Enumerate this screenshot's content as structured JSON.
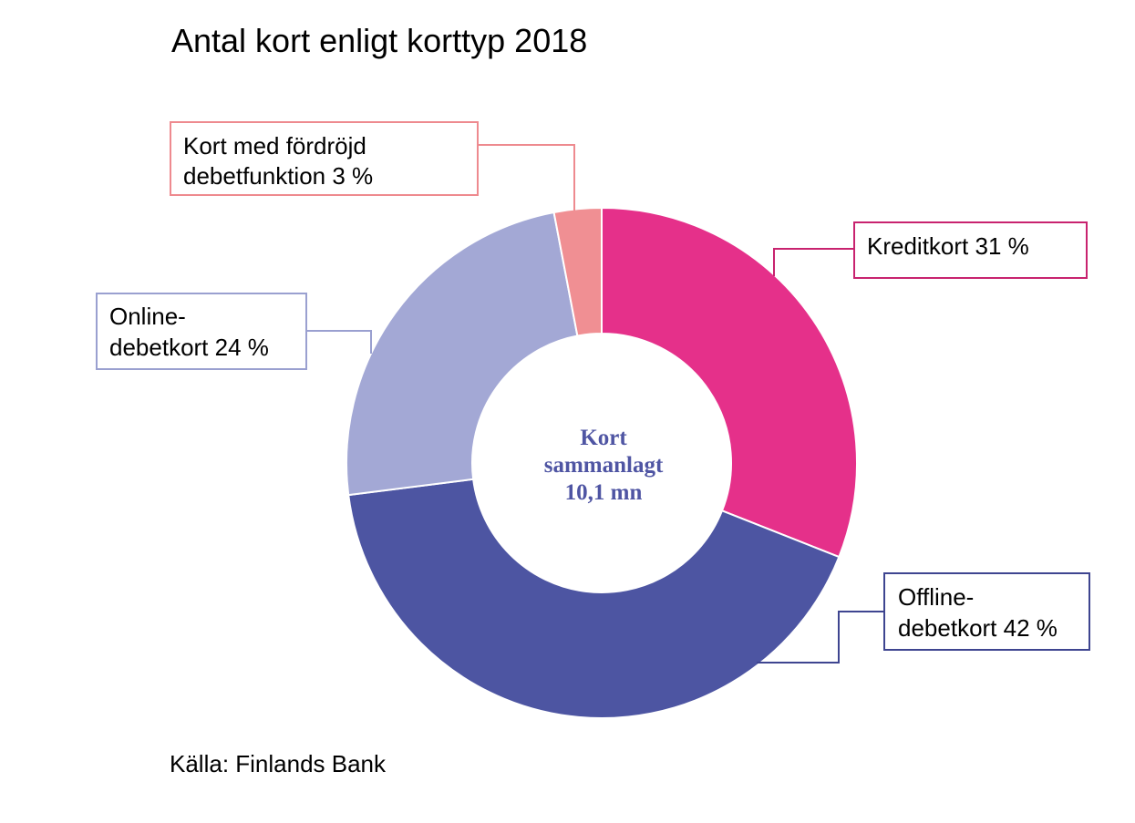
{
  "chart_data": {
    "type": "pie",
    "title": "Antal kort enligt korttyp 2018",
    "center_label": [
      "Kort",
      "sammanlagt",
      "10,1 mn"
    ],
    "source": "Källa: Finlands Bank",
    "slices": [
      {
        "name": "Kreditkort",
        "value": 31,
        "label": [
          "Kreditkort 31 %"
        ],
        "color": "#e5308a",
        "border": "#c8236f"
      },
      {
        "name": "Offline-debetkort",
        "value": 42,
        "label": [
          "Offline-",
          "debetkort 42 %"
        ],
        "color": "#4d55a2",
        "border": "#3e4590"
      },
      {
        "name": "Online-debetkort",
        "value": 24,
        "label": [
          "Online-",
          "debetkort 24 %"
        ],
        "color": "#a3a8d5",
        "border": "#9aa0d0"
      },
      {
        "name": "Kort med fördröjd debetfunktion",
        "value": 3,
        "label": [
          "Kort med fördröjd",
          "debetfunktion 3 %"
        ],
        "color": "#f08f93",
        "border": "#ee8a8f"
      }
    ]
  }
}
